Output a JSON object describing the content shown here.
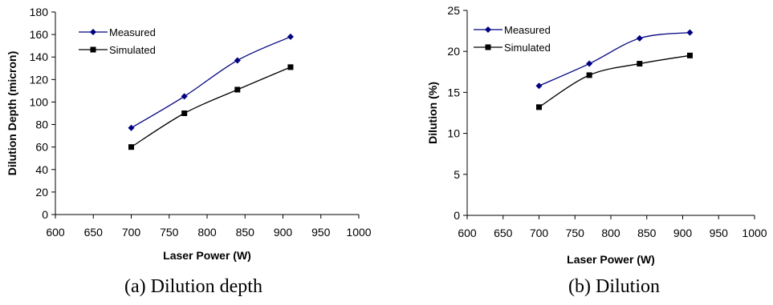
{
  "chart_data": [
    {
      "type": "line",
      "caption": "(a) Dilution depth",
      "xlabel": "Laser Power (W)",
      "ylabel": "Dilution Depth (micron)",
      "xlim": [
        600,
        1000
      ],
      "ylim": [
        0,
        180
      ],
      "xticks": [
        600,
        650,
        700,
        750,
        800,
        850,
        900,
        950,
        1000
      ],
      "yticks": [
        0,
        20,
        40,
        60,
        80,
        100,
        120,
        140,
        160,
        180
      ],
      "grid": false,
      "legend_position": "top-left",
      "series": [
        {
          "name": "Measured",
          "color": "#000080",
          "marker": "diamond",
          "x": [
            700,
            770,
            840,
            910
          ],
          "y": [
            77,
            105,
            137,
            158
          ]
        },
        {
          "name": "Simulated",
          "color": "#000000",
          "marker": "square",
          "x": [
            700,
            770,
            840,
            910
          ],
          "y": [
            60,
            90,
            111,
            131
          ]
        }
      ]
    },
    {
      "type": "line",
      "caption": "(b) Dilution",
      "xlabel": "Laser Power (W)",
      "ylabel": "Dilution (%)",
      "xlim": [
        600,
        1000
      ],
      "ylim": [
        0,
        25
      ],
      "xticks": [
        600,
        650,
        700,
        750,
        800,
        850,
        900,
        950,
        1000
      ],
      "yticks": [
        0,
        5,
        10,
        15,
        20,
        25
      ],
      "grid": false,
      "legend_position": "top-left",
      "series": [
        {
          "name": "Measured",
          "color": "#000080",
          "marker": "diamond",
          "x": [
            700,
            770,
            840,
            910
          ],
          "y": [
            15.8,
            18.5,
            21.6,
            22.3
          ]
        },
        {
          "name": "Simulated",
          "color": "#000000",
          "marker": "square",
          "x": [
            700,
            770,
            840,
            910
          ],
          "y": [
            13.2,
            17.1,
            18.5,
            19.5
          ]
        }
      ]
    }
  ]
}
